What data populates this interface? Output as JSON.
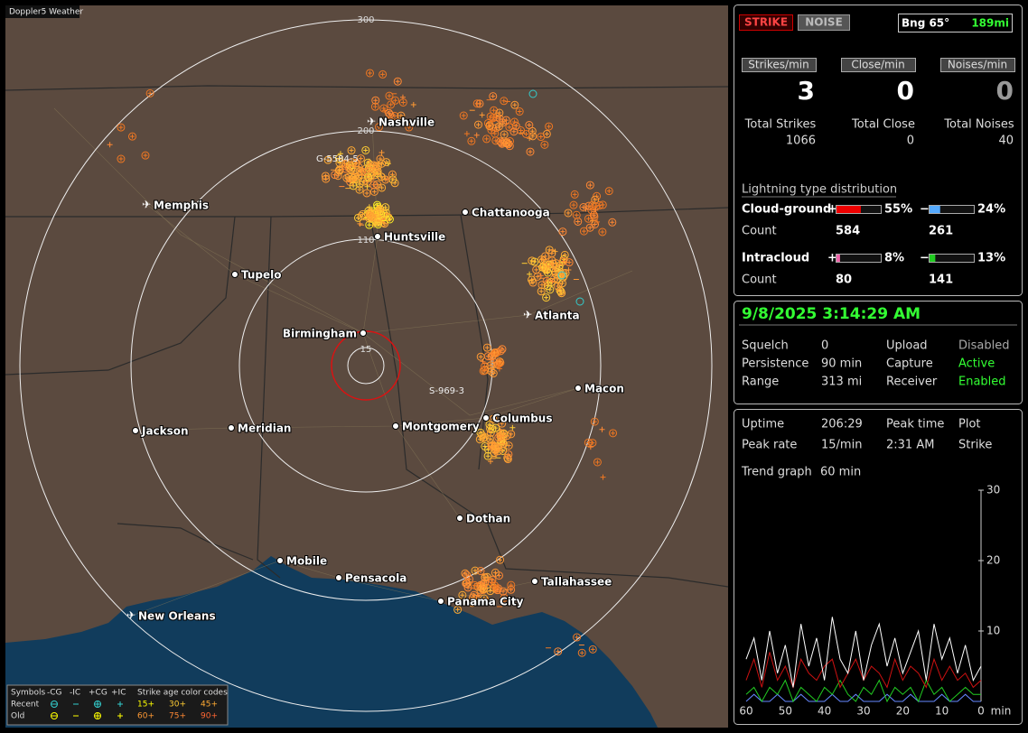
{
  "map": {
    "title": "Doppler5 Weather",
    "ring_labels": [
      "300",
      "200",
      "110",
      "15"
    ],
    "tracks": [
      "G-5584-5",
      "S-969-3"
    ],
    "cities": [
      "Nashville",
      "Memphis",
      "Chattanooga",
      "Huntsville",
      "Tupelo",
      "Birmingham",
      "Atlanta",
      "Macon",
      "Columbus",
      "Montgomery",
      "Jackson",
      "Meridian",
      "Dothan",
      "Mobile",
      "Pensacola",
      "Tallahassee",
      "Panama City",
      "New Orleans"
    ],
    "legend": {
      "symbols": "Symbols",
      "columns": [
        "-CG",
        "-IC",
        "+CG",
        "+IC"
      ],
      "age_title": "Strike age color codes",
      "recent": "Recent",
      "old": "Old",
      "recent_ages": [
        "15+",
        "30+",
        "45+"
      ],
      "old_ages": [
        "60+",
        "75+",
        "90+"
      ]
    }
  },
  "header": {
    "strike": "STRIKE",
    "noise": "NOISE",
    "bearing": "Bng 65°",
    "distance": "189mi"
  },
  "rates": [
    {
      "label": "Strikes/min",
      "value": 3,
      "total_label": "Total Strikes",
      "total": 1066
    },
    {
      "label": "Close/min",
      "value": 0,
      "total_label": "Total Close",
      "total": 0
    },
    {
      "label": "Noises/min",
      "value": 0,
      "total_label": "Total Noises",
      "total": 40
    }
  ],
  "distribution": {
    "title": "Lightning type distribution",
    "pos_sign": "+",
    "neg_sign": "−",
    "count_label": "Count",
    "rows": [
      {
        "name": "Cloud-ground",
        "pos": {
          "value": 55,
          "label": "55%"
        },
        "neg": {
          "value": 24,
          "label": "24%"
        },
        "pos_count": 584,
        "neg_count": 261
      },
      {
        "name": "Intracloud",
        "pos": {
          "value": 8,
          "label": "8%"
        },
        "neg": {
          "value": 13,
          "label": "13%"
        },
        "pos_count": 80,
        "neg_count": 141
      }
    ]
  },
  "status": {
    "datetime": "9/8/2025 3:14:29 AM",
    "rows": [
      [
        "Squelch",
        "0",
        "Upload",
        "Disabled"
      ],
      [
        "Persistence",
        "90 min",
        "Capture",
        "Active"
      ],
      [
        "Range",
        "313 mi",
        "Receiver",
        "Enabled"
      ]
    ]
  },
  "stats": {
    "rows": [
      [
        "Uptime",
        "206:29",
        "Peak time",
        "Plot"
      ],
      [
        "Peak rate",
        "15/min",
        "2:31 AM",
        "Strike"
      ]
    ],
    "trend_label": "Trend graph",
    "trend_window": "60 min"
  },
  "trend": {
    "ylim": [
      0,
      30
    ],
    "yticks": [
      10,
      20,
      30
    ],
    "xlim": [
      60,
      0
    ],
    "xticks": [
      60,
      50,
      40,
      30,
      20,
      10,
      0
    ],
    "x_unit": "min",
    "x": [
      60,
      58,
      56,
      54,
      52,
      50,
      48,
      46,
      44,
      42,
      40,
      38,
      36,
      34,
      32,
      30,
      28,
      26,
      24,
      22,
      20,
      18,
      16,
      14,
      12,
      10,
      8,
      6,
      4,
      2,
      0
    ],
    "series": [
      {
        "color": "#ffffff",
        "values": [
          6,
          9,
          3,
          10,
          4,
          8,
          2,
          11,
          5,
          9,
          3,
          12,
          6,
          4,
          10,
          3,
          8,
          11,
          5,
          9,
          4,
          7,
          10,
          3,
          11,
          6,
          9,
          4,
          8,
          3,
          5
        ]
      },
      {
        "color": "#cc1111",
        "values": [
          3,
          6,
          2,
          7,
          3,
          5,
          2,
          6,
          4,
          3,
          5,
          6,
          2,
          4,
          6,
          3,
          5,
          4,
          2,
          6,
          3,
          5,
          4,
          2,
          6,
          3,
          5,
          3,
          4,
          2,
          3
        ]
      },
      {
        "color": "#22cc22",
        "values": [
          1,
          2,
          0,
          2,
          1,
          3,
          0,
          2,
          1,
          0,
          2,
          1,
          3,
          1,
          0,
          2,
          1,
          3,
          0,
          2,
          1,
          2,
          0,
          3,
          1,
          2,
          0,
          1,
          2,
          1,
          1
        ]
      },
      {
        "color": "#6688ff",
        "values": [
          0,
          1,
          0,
          0,
          1,
          0,
          0,
          1,
          0,
          0,
          0,
          1,
          0,
          0,
          1,
          0,
          0,
          0,
          1,
          0,
          0,
          1,
          0,
          0,
          0,
          1,
          0,
          0,
          1,
          0,
          0
        ]
      }
    ]
  }
}
